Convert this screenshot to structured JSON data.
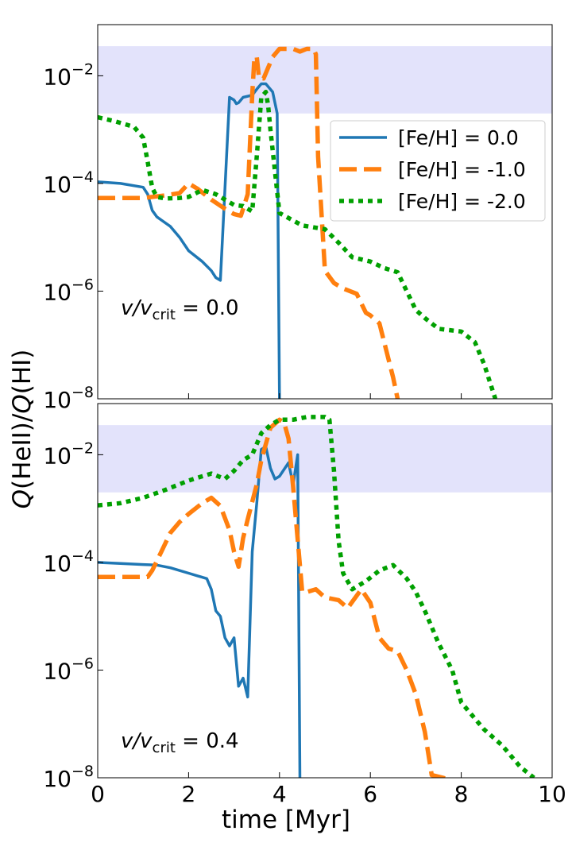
{
  "chart_data": [
    {
      "type": "line",
      "panel": "top",
      "annotation_prefix": "v/v",
      "annotation_sub": "crit",
      "annotation_value": " = 0.0",
      "xlim": [
        0,
        10
      ],
      "ylim_log10": [
        -8,
        -6.6
      ],
      "ylabel": "Q(HeII)/Q(HI)",
      "y_scale": "log",
      "y_ticks": [
        {
          "exp": "−2",
          "v": -2
        },
        {
          "exp": "−4",
          "v": -4
        },
        {
          "exp": "−6",
          "v": -6
        },
        {
          "exp": "−8",
          "v": -8
        }
      ],
      "shaded_band_log10": [
        -2.7,
        -1.45
      ],
      "shaded_color": "#e3e3fb",
      "legend_position": "upper-right",
      "series": [
        {
          "name": "[Fe/H] = 0.0",
          "color": "#1f77b4",
          "style": "solid",
          "x": [
            0,
            0.5,
            1.0,
            1.1,
            1.2,
            1.3,
            1.4,
            1.6,
            1.8,
            2.0,
            2.3,
            2.5,
            2.6,
            2.7,
            2.9,
            3.0,
            3.05,
            3.1,
            3.2,
            3.4,
            3.5,
            3.6,
            3.7,
            3.85,
            3.95,
            4.0
          ],
          "logy": [
            -3.97,
            -4.0,
            -4.07,
            -4.2,
            -4.5,
            -4.62,
            -4.68,
            -4.8,
            -5.0,
            -5.25,
            -5.45,
            -5.62,
            -5.75,
            -5.8,
            -2.4,
            -2.45,
            -2.52,
            -2.5,
            -2.4,
            -2.36,
            -2.25,
            -2.15,
            -2.15,
            -2.3,
            -2.7,
            -8.0
          ]
        },
        {
          "name": "[Fe/H] = -1.0",
          "color": "#ff7f0e",
          "style": "dashed",
          "x": [
            0,
            0.5,
            1.0,
            1.2,
            1.5,
            1.8,
            2.0,
            2.2,
            2.5,
            2.8,
            3.0,
            3.15,
            3.3,
            3.4,
            3.45,
            3.5,
            3.55,
            3.65,
            3.75,
            3.85,
            4.0,
            4.15,
            4.3,
            4.45,
            4.6,
            4.75,
            4.8,
            4.85,
            5.0,
            5.2,
            5.4,
            5.7,
            5.9,
            6.0,
            6.2,
            6.35,
            6.5,
            6.6
          ],
          "logy": [
            -4.27,
            -4.27,
            -4.27,
            -4.25,
            -4.22,
            -4.18,
            -4.0,
            -4.1,
            -4.3,
            -4.47,
            -4.57,
            -4.6,
            -4.2,
            -2.35,
            -1.65,
            -1.65,
            -2.05,
            -2.05,
            -1.85,
            -1.65,
            -1.5,
            -1.5,
            -1.5,
            -1.55,
            -1.5,
            -1.5,
            -1.6,
            -3.5,
            -5.62,
            -5.85,
            -5.95,
            -6.05,
            -6.4,
            -6.45,
            -6.6,
            -7.1,
            -7.6,
            -8.0
          ]
        },
        {
          "name": "[Fe/H] = -2.0",
          "color": "#00a000",
          "style": "dotted",
          "x": [
            0,
            0.4,
            0.8,
            1.0,
            1.1,
            1.2,
            1.3,
            1.5,
            1.8,
            2.0,
            2.3,
            2.6,
            2.8,
            3.0,
            3.2,
            3.4,
            3.5,
            3.6,
            3.7,
            3.75,
            3.8,
            4.0,
            4.5,
            5.0,
            5.3,
            5.6,
            6.0,
            6.3,
            6.6,
            7.0,
            7.2,
            7.5,
            8.0,
            8.3,
            8.5,
            8.75
          ],
          "logy": [
            -2.77,
            -2.85,
            -2.95,
            -3.15,
            -3.6,
            -4.08,
            -4.25,
            -4.28,
            -4.27,
            -4.25,
            -4.12,
            -4.2,
            -4.3,
            -4.4,
            -4.42,
            -4.52,
            -3.5,
            -2.4,
            -2.3,
            -2.55,
            -3.0,
            -4.55,
            -4.78,
            -4.85,
            -5.1,
            -5.37,
            -5.45,
            -5.57,
            -5.65,
            -6.35,
            -6.5,
            -6.7,
            -6.75,
            -6.95,
            -7.35,
            -8.0
          ]
        }
      ]
    },
    {
      "type": "line",
      "panel": "bottom",
      "annotation_prefix": "v/v",
      "annotation_sub": "crit",
      "annotation_value": " = 0.4",
      "xlim": [
        0,
        10
      ],
      "xlabel": "time [Myr]",
      "x_ticks": [
        "0",
        "2",
        "4",
        "6",
        "8",
        "10"
      ],
      "y_scale": "log",
      "y_ticks": [
        {
          "exp": "−2",
          "v": -2
        },
        {
          "exp": "−4",
          "v": -4
        },
        {
          "exp": "−6",
          "v": -6
        },
        {
          "exp": "−8",
          "v": -8
        }
      ],
      "shaded_band_log10": [
        -2.7,
        -1.45
      ],
      "series": [
        {
          "name": "[Fe/H] = 0.0",
          "color": "#1f77b4",
          "style": "solid",
          "x": [
            0,
            0.5,
            1.0,
            1.3,
            1.6,
            2.0,
            2.2,
            2.4,
            2.5,
            2.6,
            2.7,
            2.8,
            2.9,
            3.0,
            3.1,
            3.2,
            3.3,
            3.4,
            3.5,
            3.6,
            3.7,
            3.8,
            3.9,
            4.0,
            4.2,
            4.3,
            4.4,
            4.45
          ],
          "logy": [
            -4.0,
            -4.02,
            -4.04,
            -4.05,
            -4.1,
            -4.2,
            -4.25,
            -4.3,
            -4.5,
            -4.9,
            -5.0,
            -5.4,
            -5.55,
            -5.4,
            -6.3,
            -6.15,
            -6.5,
            -3.8,
            -2.9,
            -1.9,
            -1.85,
            -2.25,
            -2.45,
            -2.4,
            -2.15,
            -2.55,
            -2.0,
            -8.0
          ]
        },
        {
          "name": "[Fe/H] = -1.0",
          "color": "#ff7f0e",
          "style": "dashed",
          "x": [
            0,
            0.5,
            1.0,
            1.1,
            1.2,
            1.4,
            1.6,
            1.8,
            2.0,
            2.3,
            2.5,
            2.7,
            2.9,
            3.0,
            3.1,
            3.2,
            3.3,
            3.5,
            3.6,
            3.8,
            4.0,
            4.1,
            4.2,
            4.3,
            4.5,
            4.6,
            4.8,
            5.0,
            5.3,
            5.5,
            5.8,
            6.0,
            6.2,
            6.4,
            6.6,
            6.8,
            7.0,
            7.2,
            7.35,
            7.6,
            7.8
          ],
          "logy": [
            -4.27,
            -4.27,
            -4.27,
            -4.27,
            -4.15,
            -3.8,
            -3.45,
            -3.25,
            -3.1,
            -2.9,
            -2.8,
            -2.95,
            -3.4,
            -3.8,
            -4.08,
            -3.55,
            -3.2,
            -2.55,
            -2.1,
            -1.5,
            -1.35,
            -1.4,
            -1.7,
            -2.6,
            -4.55,
            -4.55,
            -4.5,
            -4.65,
            -4.7,
            -4.85,
            -4.5,
            -4.75,
            -5.4,
            -5.6,
            -5.65,
            -6.0,
            -6.45,
            -7.15,
            -7.95,
            -8.0,
            -8.05
          ]
        },
        {
          "name": "[Fe/H] = -2.0",
          "color": "#00a000",
          "style": "dotted",
          "x": [
            0,
            0.5,
            1.0,
            1.5,
            2.0,
            2.3,
            2.5,
            2.8,
            3.0,
            3.2,
            3.4,
            3.6,
            3.8,
            4.0,
            4.3,
            4.6,
            5.0,
            5.1,
            5.2,
            5.3,
            5.4,
            5.6,
            5.9,
            6.2,
            6.5,
            6.8,
            7.0,
            7.2,
            7.5,
            7.8,
            8.0,
            8.2,
            8.5,
            8.9,
            9.3,
            9.6
          ],
          "logy": [
            -2.94,
            -2.9,
            -2.8,
            -2.65,
            -2.48,
            -2.4,
            -2.35,
            -2.45,
            -2.3,
            -2.1,
            -2.0,
            -1.6,
            -1.45,
            -1.35,
            -1.35,
            -1.3,
            -1.3,
            -1.35,
            -2.3,
            -3.6,
            -4.2,
            -4.5,
            -4.35,
            -4.15,
            -4.05,
            -4.3,
            -4.55,
            -4.9,
            -5.5,
            -6.0,
            -6.6,
            -6.8,
            -7.1,
            -7.4,
            -7.8,
            -8.0
          ]
        }
      ]
    }
  ],
  "legend": [
    {
      "label": "[Fe/H] = 0.0",
      "color": "#1f77b4",
      "style": "solid"
    },
    {
      "label": "[Fe/H] = -1.0",
      "color": "#ff7f0e",
      "style": "dashed"
    },
    {
      "label": "[Fe/H] = -2.0",
      "color": "#00a000",
      "style": "dotted"
    }
  ],
  "y_axis_label": "Q(HeII)/Q(HI)"
}
